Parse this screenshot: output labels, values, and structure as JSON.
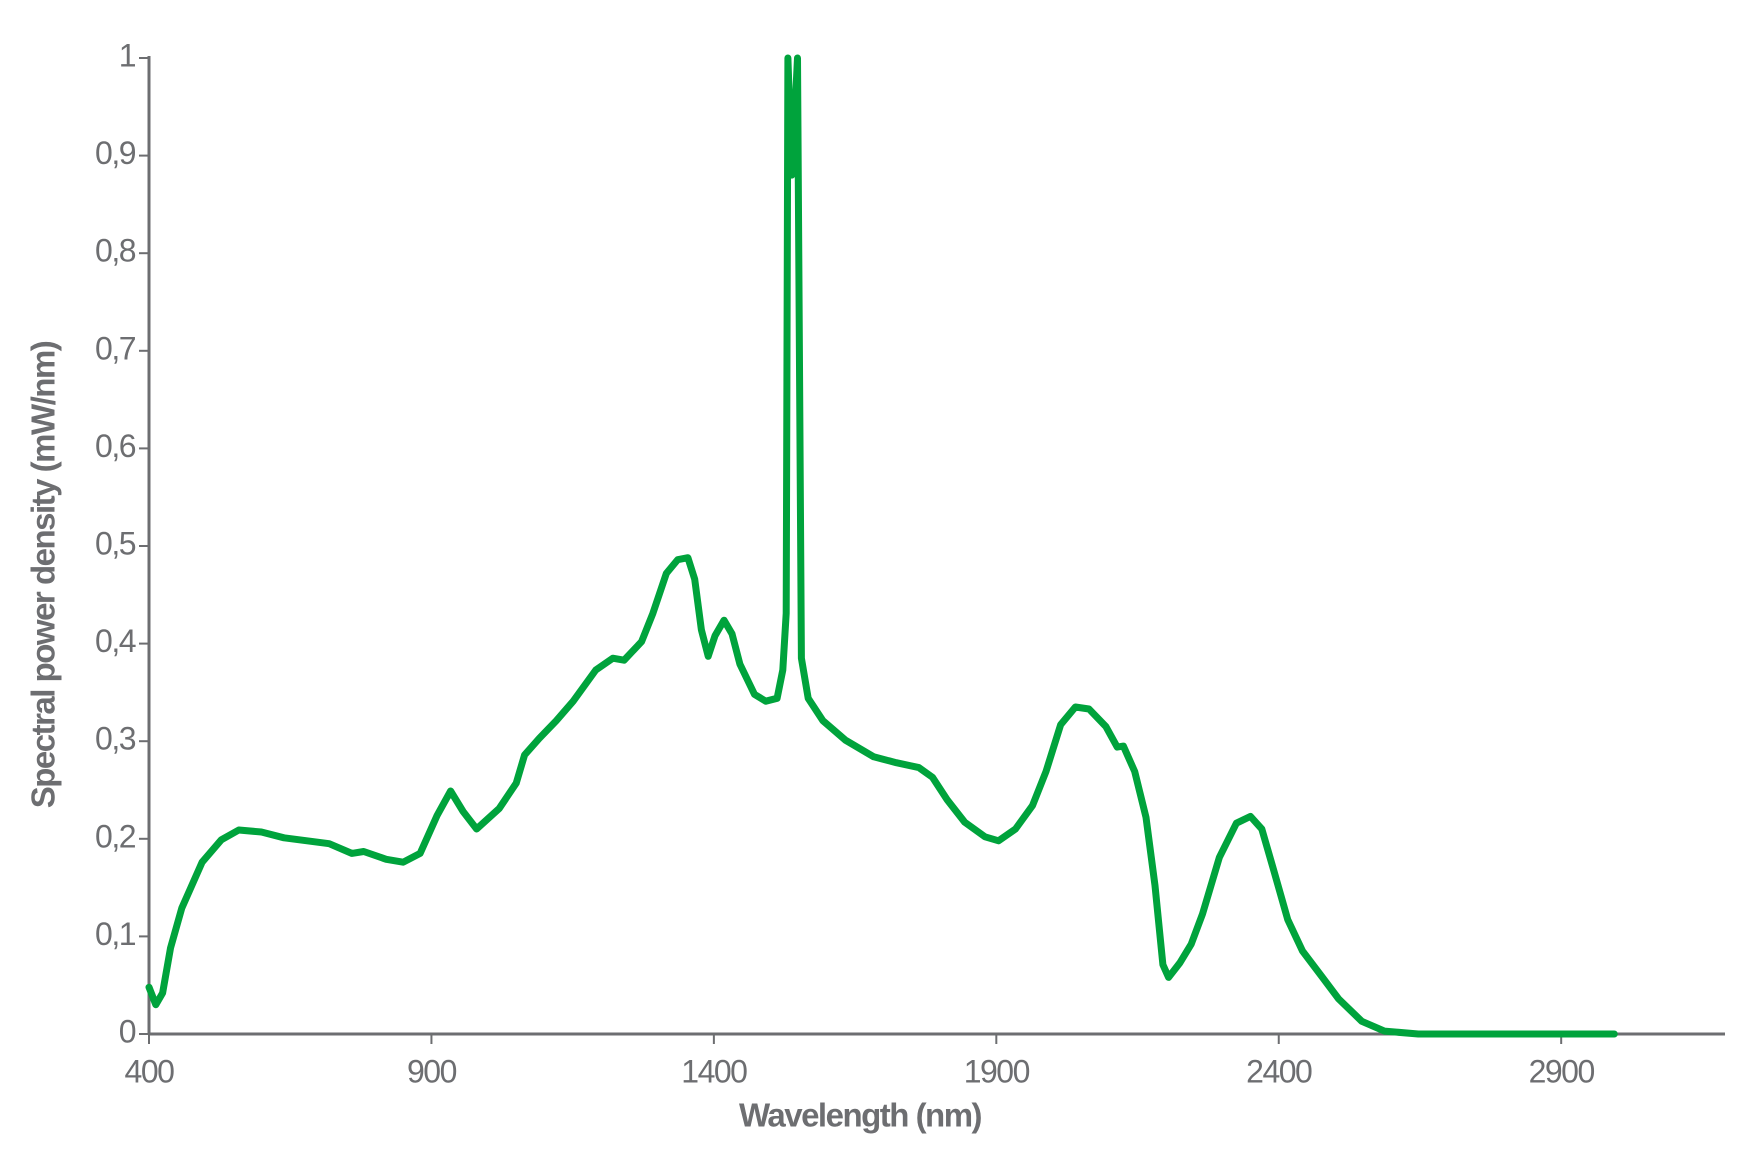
{
  "chart_data": {
    "type": "line",
    "x_label": "Wavelength (nm)",
    "y_label": "Spectral power density (mW/nm)",
    "xlim": [
      400,
      3190
    ],
    "xticks": [
      400,
      900,
      1400,
      1900,
      2400,
      2900
    ],
    "ylim": [
      0,
      1
    ],
    "yticks": [
      0,
      {
        "value": 0.1,
        "label": "0,1"
      },
      {
        "value": 0.2,
        "label": "0,2"
      },
      {
        "value": 0.3,
        "label": "0,3"
      },
      {
        "value": 0.4,
        "label": "0,4"
      },
      {
        "value": 0.5,
        "label": "0,5"
      },
      {
        "value": 0.6,
        "label": "0,6"
      },
      {
        "value": 0.7,
        "label": "0,7"
      },
      {
        "value": 0.8,
        "label": "0,8"
      },
      {
        "value": 0.9,
        "label": "0,9"
      },
      1
    ],
    "x": [
      400,
      412,
      424,
      438,
      458,
      494,
      528,
      559,
      599,
      639,
      719,
      759,
      780,
      820,
      850,
      880,
      910,
      934,
      956,
      980,
      1020,
      1050,
      1065,
      1091,
      1121,
      1151,
      1191,
      1221,
      1241,
      1272,
      1292,
      1316,
      1336,
      1354,
      1366,
      1378,
      1390,
      1402,
      1418,
      1432,
      1446,
      1472,
      1492,
      1512,
      1522,
      1528,
      1531,
      1538,
      1548,
      1555,
      1567,
      1593,
      1633,
      1683,
      1723,
      1763,
      1787,
      1813,
      1844,
      1880,
      1904,
      1934,
      1964,
      1988,
      2014,
      2040,
      2064,
      2094,
      2114,
      2125,
      2145,
      2165,
      2181,
      2195,
      2205,
      2225,
      2245,
      2265,
      2295,
      2325,
      2350,
      2370,
      2390,
      2416,
      2442,
      2476,
      2506,
      2547,
      2587,
      2647,
      2994
    ],
    "series": [
      {
        "color": "#00a33c",
        "values": [
          0.048,
          0.03,
          0.042,
          0.088,
          0.129,
          0.176,
          0.199,
          0.209,
          0.207,
          0.201,
          0.195,
          0.185,
          0.187,
          0.179,
          0.176,
          0.185,
          0.224,
          0.249,
          0.228,
          0.21,
          0.231,
          0.257,
          0.286,
          0.303,
          0.321,
          0.341,
          0.373,
          0.385,
          0.383,
          0.402,
          0.431,
          0.472,
          0.486,
          0.488,
          0.466,
          0.414,
          0.387,
          0.408,
          0.424,
          0.41,
          0.379,
          0.348,
          0.341,
          0.344,
          0.373,
          0.431,
          1.0,
          0.88,
          1.0,
          0.385,
          0.344,
          0.321,
          0.301,
          0.284,
          0.278,
          0.273,
          0.263,
          0.24,
          0.217,
          0.202,
          0.198,
          0.21,
          0.234,
          0.269,
          0.317,
          0.335,
          0.333,
          0.315,
          0.294,
          0.295,
          0.269,
          0.222,
          0.152,
          0.071,
          0.058,
          0.073,
          0.092,
          0.123,
          0.181,
          0.216,
          0.223,
          0.21,
          0.17,
          0.117,
          0.085,
          0.059,
          0.036,
          0.013,
          0.003,
          0,
          0
        ]
      }
    ]
  }
}
